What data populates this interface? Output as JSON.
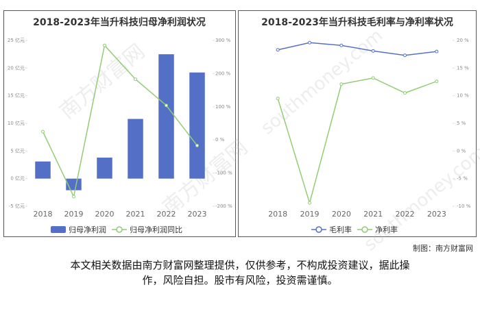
{
  "chart_data": [
    {
      "type": "bar",
      "title": "2018-2023年当升科技归母净利润状况",
      "categories": [
        "2018",
        "2019",
        "2020",
        "2021",
        "2022",
        "2023"
      ],
      "series": [
        {
          "name": "归母净利润",
          "type": "bar",
          "axis": "y",
          "color": "#5470c6",
          "values": [
            3.1,
            -2.1,
            3.8,
            10.8,
            22.5,
            19.2
          ]
        },
        {
          "name": "归母净利润同比",
          "type": "line",
          "axis": "y2",
          "color": "#91cc75",
          "values": [
            25,
            -171,
            285,
            183,
            104,
            -17
          ]
        }
      ],
      "ylim": [
        -5,
        25
      ],
      "yticks": [
        {
          "value": -5,
          "label": "-5 亿元"
        },
        {
          "value": 0,
          "label": "0 亿元"
        },
        {
          "value": 5,
          "label": "5 亿元"
        },
        {
          "value": 10,
          "label": "10 亿元"
        },
        {
          "value": 15,
          "label": "15 亿元"
        },
        {
          "value": 20,
          "label": "20 亿元"
        },
        {
          "value": 25,
          "label": "25 亿元"
        }
      ],
      "y2lim": [
        -200,
        300
      ],
      "y2ticks": [
        {
          "value": -200,
          "label": "-200 %"
        },
        {
          "value": -100,
          "label": "-100 %"
        },
        {
          "value": 0,
          "label": "0 %"
        },
        {
          "value": 100,
          "label": "100 %"
        },
        {
          "value": 200,
          "label": "200 %"
        },
        {
          "value": 300,
          "label": "300 %"
        }
      ]
    },
    {
      "type": "line",
      "title": "2018-2023年当升科技毛利率与净利率状况",
      "categories": [
        "2018",
        "2019",
        "2020",
        "2021",
        "2022",
        "2023"
      ],
      "series": [
        {
          "name": "毛利率",
          "type": "line",
          "axis": "y",
          "color": "#5470c6",
          "values": [
            18.3,
            19.6,
            19.1,
            18.1,
            17.3,
            18.0
          ]
        },
        {
          "name": "净利率",
          "type": "line",
          "axis": "y",
          "color": "#91cc75",
          "values": [
            9.5,
            -9.4,
            12.1,
            13.2,
            10.5,
            12.6
          ]
        }
      ],
      "ylim": [
        -10,
        20
      ],
      "yticks": [
        {
          "value": -10,
          "label": "-10 %"
        },
        {
          "value": -5,
          "label": "-5 %"
        },
        {
          "value": 0,
          "label": "0 %"
        },
        {
          "value": 5,
          "label": "5 %"
        },
        {
          "value": 10,
          "label": "10 %"
        },
        {
          "value": 15,
          "label": "15 %"
        },
        {
          "value": 20,
          "label": "20 %"
        }
      ]
    }
  ],
  "watermark": [
    "南方财富网",
    "southmoney.com"
  ],
  "credit": "制图：南方财富网",
  "disclaimer": [
    "本文相关数据由南方财富网整理提供，仅供参考，不构成投资建议，据此操",
    "作，风险自担。股市有风险，投资需谨慎。"
  ]
}
